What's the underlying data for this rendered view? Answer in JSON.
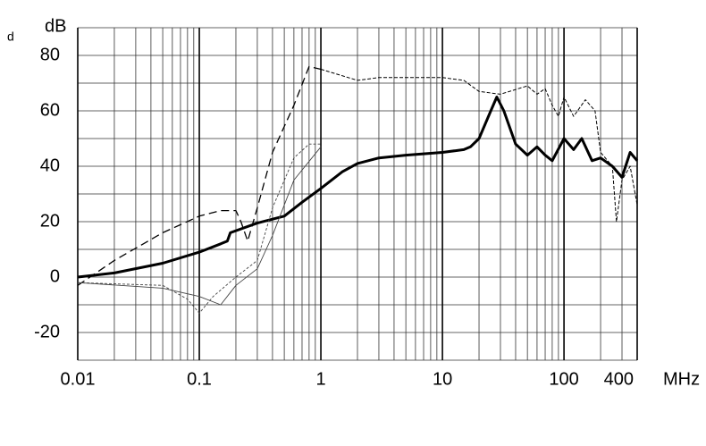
{
  "chart_data": {
    "type": "line",
    "note": "d",
    "y_label": "dB",
    "x_label": "MHz",
    "xlog": true,
    "grid": true,
    "minor_grid": true,
    "xlim": [
      0.01,
      400
    ],
    "ylim": [
      -30,
      90
    ],
    "xticks": [
      0.01,
      0.1,
      1,
      10,
      100,
      400
    ],
    "yticks": [
      -20,
      0,
      20,
      40,
      60,
      80
    ],
    "series": [
      {
        "color": "#000000",
        "width": 3,
        "dash": "none",
        "x": [
          0.01,
          0.02,
          0.05,
          0.1,
          0.15,
          0.17,
          0.18,
          0.3,
          0.5,
          0.7,
          1,
          1.5,
          2,
          3,
          5,
          10,
          15,
          17,
          20,
          25,
          28,
          32,
          40,
          50,
          60,
          70,
          80,
          100,
          120,
          140,
          170,
          200,
          250,
          300,
          350,
          400
        ],
        "values": [
          0,
          1.5,
          5,
          9,
          12,
          13,
          16,
          19.5,
          22,
          27,
          32,
          38,
          41,
          43,
          44,
          45,
          46,
          47,
          50,
          60,
          65,
          60,
          48,
          44,
          47,
          44,
          42,
          50,
          46,
          50,
          42,
          43,
          40,
          36,
          45,
          42
        ]
      },
      {
        "color": "#000000",
        "width": 1.3,
        "dash": "9 5",
        "x": [
          0.01,
          0.02,
          0.05,
          0.1,
          0.15,
          0.2,
          0.22,
          0.25,
          0.3,
          0.4,
          0.6,
          0.8,
          1
        ],
        "values": [
          -3,
          6,
          16,
          22,
          24,
          24,
          20,
          13,
          25,
          45,
          62,
          76,
          75
        ]
      },
      {
        "color": "#000000",
        "width": 1,
        "dash": "4 2",
        "x": [
          1,
          2,
          3,
          5,
          10,
          15,
          20,
          30,
          50,
          60,
          70,
          80,
          90,
          100,
          120,
          150,
          180,
          200,
          250,
          270,
          300,
          350,
          400
        ],
        "values": [
          75,
          71,
          72,
          72,
          72,
          71,
          67,
          66,
          69,
          66,
          68,
          62,
          58,
          65,
          58,
          64,
          60,
          45,
          40,
          20,
          35,
          40,
          26
        ]
      },
      {
        "color": "#444444",
        "width": 0.9,
        "dash": "3 2",
        "x": [
          0.01,
          0.05,
          0.08,
          0.1,
          0.13,
          0.2,
          0.3,
          0.4,
          0.6,
          0.8,
          1
        ],
        "values": [
          -2,
          -3,
          -8,
          -13,
          -7,
          0,
          6,
          25,
          43,
          48,
          48
        ]
      },
      {
        "color": "#444444",
        "width": 0.9,
        "dash": "none",
        "x": [
          0.01,
          0.05,
          0.1,
          0.15,
          0.2,
          0.3,
          0.4,
          0.6,
          1
        ],
        "values": [
          -2,
          -4,
          -7,
          -10,
          -3,
          3,
          15,
          35,
          47
        ]
      }
    ]
  }
}
